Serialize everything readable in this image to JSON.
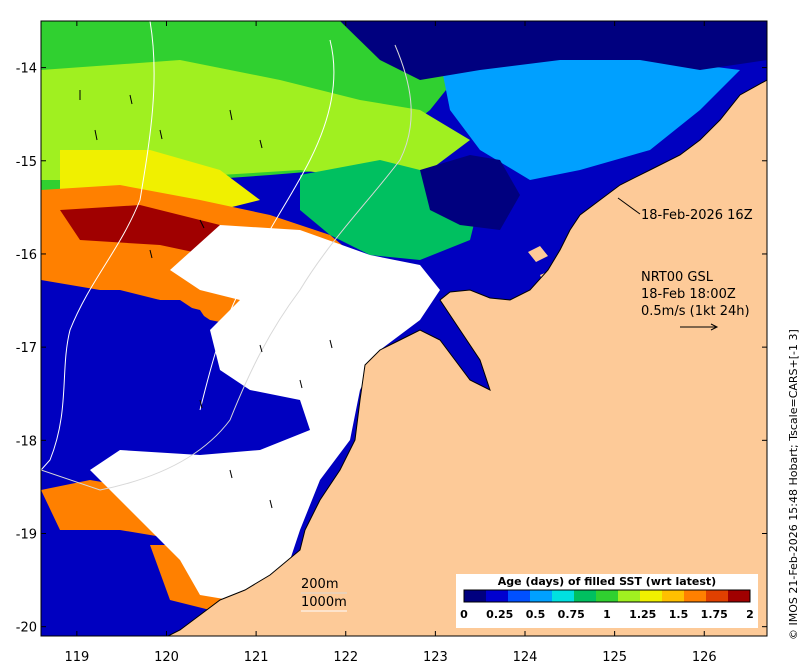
{
  "map": {
    "xaxis_ticks": [
      "119",
      "120",
      "121",
      "122",
      "123",
      "124",
      "125",
      "126"
    ],
    "yaxis_ticks": [
      "-14",
      "-15",
      "-16",
      "-17",
      "-18",
      "-19",
      "-20"
    ],
    "lon_range": [
      118.6,
      126.7
    ],
    "lat_range": [
      -20.1,
      -13.5
    ]
  },
  "annotations": {
    "front_time": "18-Feb-2026 16Z",
    "product_line1": "NRT00 GSL",
    "product_line2": "18-Feb 18:00Z",
    "product_line3": "0.5m/s (1kt 24h)",
    "isobath_200": "200m",
    "isobath_1000": "1000m"
  },
  "colorbar": {
    "title": "Age (days) of filled SST (wrt latest)",
    "labels": [
      "0",
      "0.25",
      "0.5",
      "0.75",
      "1",
      "1.25",
      "1.5",
      "1.75",
      "2"
    ],
    "colors": [
      "#00007f",
      "#0000d0",
      "#0050ff",
      "#00a0ff",
      "#00e0e0",
      "#00c060",
      "#30d030",
      "#a0f020",
      "#f0f000",
      "#ffc000",
      "#ff8000",
      "#e04000",
      "#a00000"
    ]
  },
  "credit": "© IMOS 21-Feb-2026 15:48 Hobart; Tscale=CARS+[-1 3]",
  "colors": {
    "land": "#fdca98",
    "nodata": "#ffffff",
    "frame": "#000000"
  }
}
